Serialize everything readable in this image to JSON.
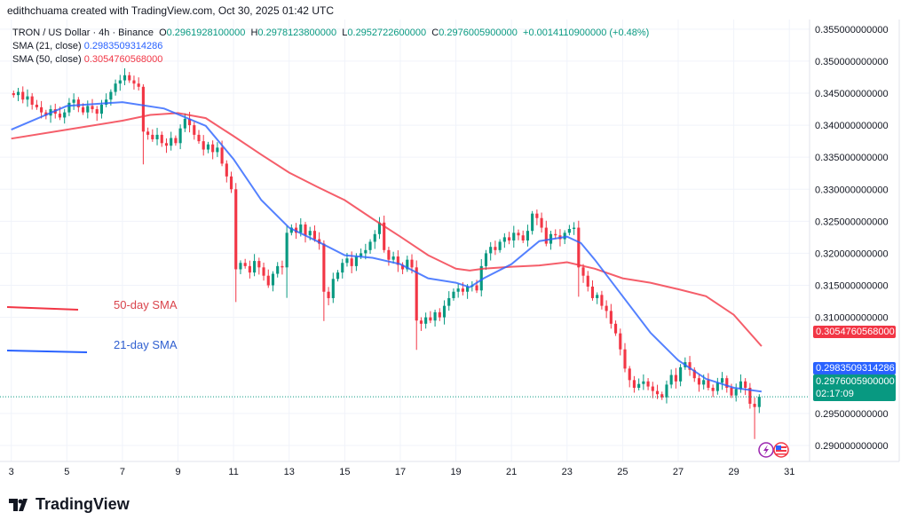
{
  "credit": "edithchuama created with TradingView.com, Oct 30, 2025 01:42 UTC",
  "legend": {
    "symbol": "TRON / US Dollar · 4h · Binance",
    "o_label": "O",
    "o": "0.2961928100000",
    "h_label": "H",
    "h": "0.2978123800000",
    "l_label": "L",
    "l": "0.2952722600000",
    "c_label": "C",
    "c": "0.2976005900000",
    "change": "+0.0014110900000 (+0.48%)",
    "sma21_label": "SMA (21, close)",
    "sma21": "0.2983509314286",
    "sma50_label": "SMA (50, close)",
    "sma50": "0.3054760568000"
  },
  "price_labels": {
    "sma50": "0.3054760568000",
    "sma21": "0.2983509314286",
    "last": "0.2976005900000",
    "countdown": "02:17:09"
  },
  "annotations": {
    "sma50": "50-day SMA",
    "sma21": "21-day SMA"
  },
  "footer": {
    "brand": "TradingView"
  },
  "colors": {
    "up": "#089981",
    "down": "#f23645",
    "sma21": "#2962ff",
    "sma50": "#f23645",
    "grid": "#f0f3fa"
  },
  "chart_data": {
    "type": "candlestick",
    "title": "TRON / US Dollar · 4h · Binance",
    "timeframe": "4h",
    "x_start_day": 3,
    "candles_per_day": 6,
    "xlim": [
      2.85,
      31.6
    ],
    "ylim": [
      0.2875,
      0.3565
    ],
    "x_ticks": [
      "3",
      "5",
      "7",
      "9",
      "11",
      "13",
      "15",
      "17",
      "19",
      "21",
      "23",
      "25",
      "27",
      "29",
      "31"
    ],
    "y_ticks": [
      "0.355000000000",
      "0.350000000000",
      "0.345000000000",
      "0.340000000000",
      "0.335000000000",
      "0.330000000000",
      "0.325000000000",
      "0.320000000000",
      "0.315000000000",
      "0.310000000000",
      "0.295000000000",
      "0.290000000000"
    ],
    "closes": [
      0.3447,
      0.3452,
      0.344,
      0.3445,
      0.3432,
      0.3428,
      0.342,
      0.3415,
      0.3425,
      0.3418,
      0.3412,
      0.342,
      0.3435,
      0.344,
      0.3428,
      0.342,
      0.343,
      0.3425,
      0.3418,
      0.3432,
      0.344,
      0.3452,
      0.3465,
      0.347,
      0.3478,
      0.347,
      0.3465,
      0.346,
      0.339,
      0.3385,
      0.3378,
      0.3385,
      0.3372,
      0.3368,
      0.338,
      0.3372,
      0.3395,
      0.341,
      0.34,
      0.3385,
      0.3375,
      0.3362,
      0.337,
      0.3358,
      0.3365,
      0.334,
      0.332,
      0.33,
      0.3175,
      0.3185,
      0.318,
      0.317,
      0.3188,
      0.3178,
      0.3165,
      0.315,
      0.3168,
      0.318,
      0.3178,
      0.3232,
      0.324,
      0.3232,
      0.3245,
      0.3228,
      0.3235,
      0.3222,
      0.3215,
      0.314,
      0.313,
      0.316,
      0.317,
      0.3185,
      0.3192,
      0.318,
      0.3195,
      0.32,
      0.3205,
      0.3218,
      0.323,
      0.3248,
      0.3205,
      0.319,
      0.3195,
      0.3182,
      0.3175,
      0.319,
      0.3178,
      0.3095,
      0.309,
      0.31,
      0.3095,
      0.3108,
      0.31,
      0.3118,
      0.313,
      0.314,
      0.3145,
      0.314,
      0.3148,
      0.315,
      0.3142,
      0.318,
      0.32,
      0.321,
      0.3205,
      0.3218,
      0.3225,
      0.322,
      0.3232,
      0.3228,
      0.322,
      0.3235,
      0.3262,
      0.3255,
      0.324,
      0.3215,
      0.323,
      0.3228,
      0.3222,
      0.3232,
      0.3238,
      0.324,
      0.3178,
      0.3165,
      0.3148,
      0.313,
      0.3135,
      0.3118,
      0.311,
      0.309,
      0.3075,
      0.305,
      0.302,
      0.3002,
      0.299,
      0.2996,
      0.3,
      0.2992,
      0.2985,
      0.298,
      0.2975,
      0.2995,
      0.301,
      0.3,
      0.3022,
      0.303,
      0.3018,
      0.3005,
      0.2995,
      0.3002,
      0.299,
      0.2985,
      0.2998,
      0.3005,
      0.299,
      0.2978,
      0.2988,
      0.3,
      0.299,
      0.2965,
      0.296,
      0.2976
    ],
    "sma21": [
      [
        3,
        0.3393
      ],
      [
        5,
        0.343
      ],
      [
        7,
        0.3436
      ],
      [
        8.5,
        0.3426
      ],
      [
        10,
        0.3399
      ],
      [
        11,
        0.3347
      ],
      [
        12,
        0.3283
      ],
      [
        13,
        0.324
      ],
      [
        14,
        0.3219
      ],
      [
        15,
        0.3197
      ],
      [
        16,
        0.3193
      ],
      [
        17,
        0.3183
      ],
      [
        18,
        0.3161
      ],
      [
        19,
        0.3154
      ],
      [
        19.5,
        0.3147
      ],
      [
        20,
        0.3161
      ],
      [
        21,
        0.3183
      ],
      [
        22,
        0.3219
      ],
      [
        23,
        0.3226
      ],
      [
        23.5,
        0.3216
      ],
      [
        24,
        0.319
      ],
      [
        25,
        0.3133
      ],
      [
        26,
        0.3076
      ],
      [
        27,
        0.3033
      ],
      [
        28,
        0.3004
      ],
      [
        29,
        0.299
      ],
      [
        30,
        0.2984
      ]
    ],
    "sma50": [
      [
        3,
        0.3379
      ],
      [
        5,
        0.3393
      ],
      [
        7,
        0.3407
      ],
      [
        8,
        0.3416
      ],
      [
        9,
        0.3419
      ],
      [
        10,
        0.3411
      ],
      [
        11,
        0.3383
      ],
      [
        12,
        0.3354
      ],
      [
        13,
        0.3326
      ],
      [
        14,
        0.3304
      ],
      [
        15,
        0.3283
      ],
      [
        16,
        0.3254
      ],
      [
        17,
        0.3226
      ],
      [
        18,
        0.3197
      ],
      [
        19,
        0.3176
      ],
      [
        19.5,
        0.3173
      ],
      [
        20,
        0.3176
      ],
      [
        21,
        0.3179
      ],
      [
        22,
        0.3181
      ],
      [
        23,
        0.3186
      ],
      [
        24,
        0.3176
      ],
      [
        25,
        0.3161
      ],
      [
        26,
        0.3154
      ],
      [
        27,
        0.3144
      ],
      [
        28,
        0.3133
      ],
      [
        29,
        0.3104
      ],
      [
        30,
        0.3055
      ]
    ],
    "grid": true
  }
}
